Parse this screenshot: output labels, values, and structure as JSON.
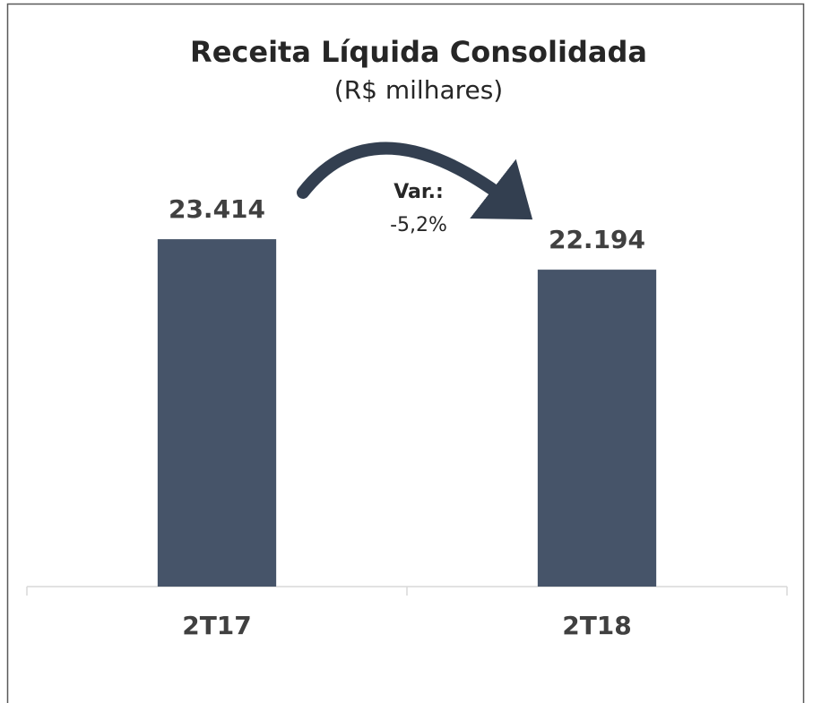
{
  "chart_data": {
    "type": "bar",
    "title": "Receita Líquida Consolidada",
    "subtitle": "(R$ milhares)",
    "categories": [
      "2T17",
      "2T18"
    ],
    "values": [
      23414,
      22194
    ],
    "value_labels": [
      "23.414",
      "22.194"
    ],
    "color": "#465469",
    "ylim": [
      9500,
      26000
    ],
    "annotations": [
      "Var.:",
      "-5,2%"
    ]
  }
}
